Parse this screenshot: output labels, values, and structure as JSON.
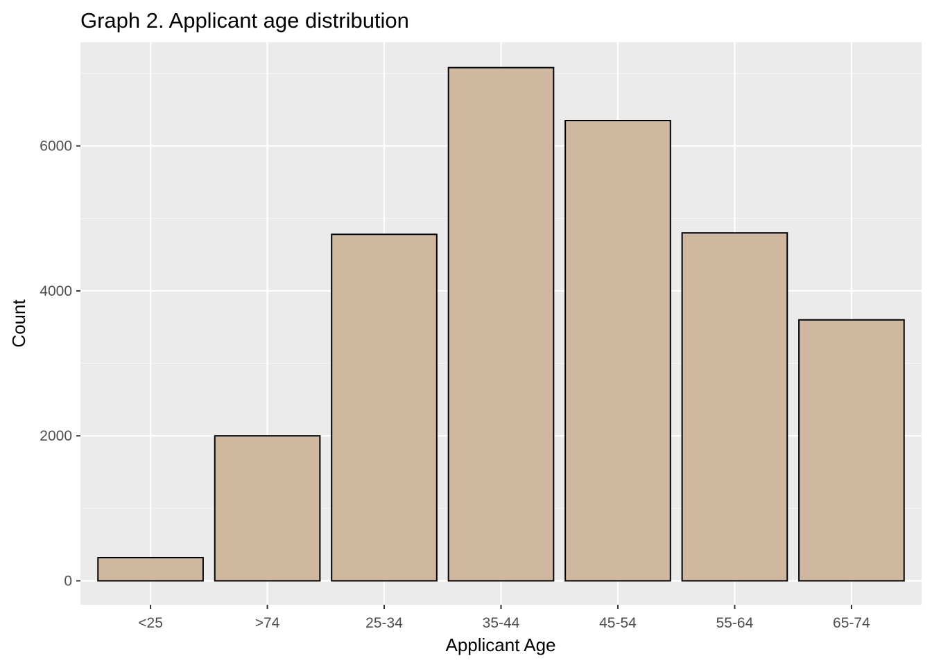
{
  "chart_data": {
    "type": "bar",
    "title": "Graph 2. Applicant age distribution",
    "xlabel": "Applicant Age",
    "ylabel": "Count",
    "categories": [
      "<25",
      ">74",
      "25-34",
      "35-44",
      "45-54",
      "55-64",
      "65-74"
    ],
    "values": [
      320,
      2000,
      4780,
      7080,
      6350,
      4800,
      3600
    ],
    "ylim": [
      -330,
      7430
    ],
    "yticks": [
      0,
      2000,
      4000,
      6000
    ],
    "ytick_labels": [
      "0",
      "2000",
      "4000",
      "6000"
    ],
    "grid": true,
    "legend": "none",
    "colors": {
      "bar_fill": "#d0b8a0",
      "bar_stroke": "#000000",
      "panel_background": "#ebebeb",
      "grid_major": "#ffffff",
      "grid_minor": "#f5f5f5",
      "tick_label": "#4d4d4d",
      "tick_mark": "#333333"
    }
  }
}
